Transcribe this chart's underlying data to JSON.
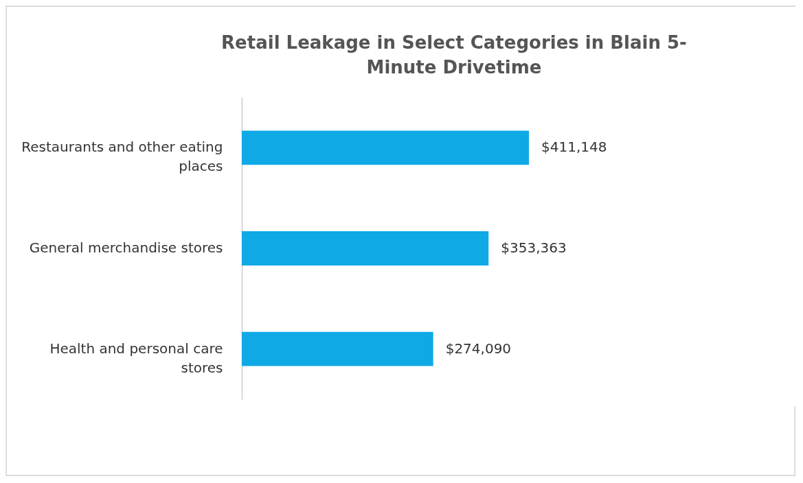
{
  "chart_data": {
    "type": "bar",
    "orientation": "horizontal",
    "title": "Retail Leakage in Select Categories in Blain 5-Minute Drivetime",
    "categories": [
      "Restaurants and other eating places",
      "General merchandise stores",
      "Health and personal care stores"
    ],
    "values": [
      411148,
      353363,
      274090
    ],
    "value_labels": [
      "$411,148",
      "$353,363",
      "$274,090"
    ],
    "color": "#0fa9e6"
  }
}
